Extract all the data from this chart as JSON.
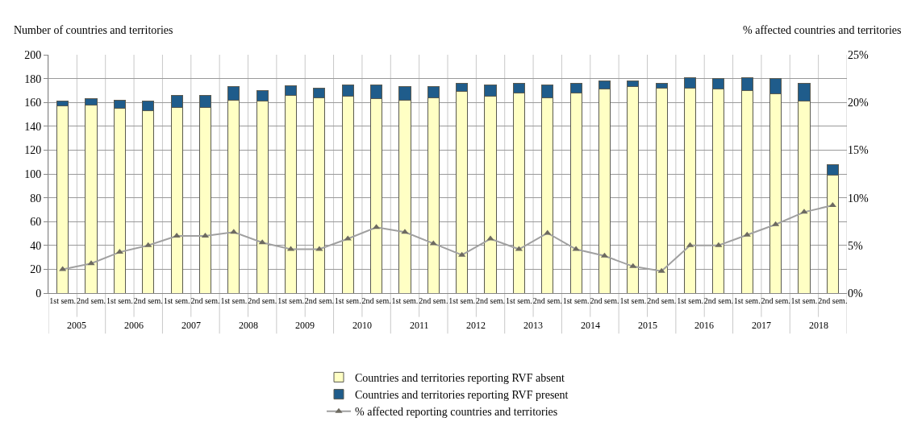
{
  "chart_data": {
    "type": "bar",
    "ylabel": "Number of countries and territories",
    "y2label": "% affected countries and territories",
    "categories": [
      "1st sem.",
      "2nd sem.",
      "1st sem.",
      "2nd sem.",
      "1st sem.",
      "2nd sem.",
      "1st sem.",
      "2nd sem.",
      "1st sem.",
      "2nd sem.",
      "1st sem.",
      "2nd sem.",
      "1st sem.",
      "2nd sem.",
      "1st sem.",
      "2nd sem.",
      "1st sem.",
      "2nd sem.",
      "1st sem.",
      "2nd sem.",
      "1st sem.",
      "2nd sem.",
      "1st sem.",
      "2nd sem.",
      "1st sem.",
      "2nd sem.",
      "1st sem.",
      "2nd sem."
    ],
    "annotations": [
      "2005",
      "2006",
      "2007",
      "2008",
      "2009",
      "2010",
      "2011",
      "2012",
      "2013",
      "2014",
      "2015",
      "2016",
      "2017",
      "2018"
    ],
    "stacked": true,
    "series": [
      {
        "name": "Countries and territories reporting RVF absent",
        "color": "#ffffc4",
        "values": [
          157,
          158,
          155,
          153,
          156,
          156,
          162,
          161,
          166,
          164,
          165,
          163,
          162,
          164,
          169,
          165,
          168,
          164,
          168,
          171,
          173,
          172,
          172,
          171,
          170,
          167,
          161,
          99
        ]
      },
      {
        "name": "Countries and territories reporting RVF present",
        "color": "#1f5c8b",
        "values": [
          4,
          5,
          7,
          8,
          10,
          10,
          11,
          9,
          8,
          8,
          10,
          12,
          11,
          9,
          7,
          10,
          8,
          11,
          8,
          7,
          5,
          4,
          9,
          9,
          11,
          13,
          15,
          9
        ]
      },
      {
        "name": "% affected reporting countries and territories",
        "type": "line",
        "axis": "y2",
        "color": "#a0a0a0",
        "marker": "triangle",
        "values": [
          2.5,
          3.1,
          4.3,
          5.0,
          6.0,
          6.0,
          6.4,
          5.3,
          4.6,
          4.6,
          5.7,
          6.9,
          6.4,
          5.2,
          4.0,
          5.7,
          4.6,
          6.3,
          4.6,
          3.9,
          2.8,
          2.3,
          5.0,
          5.0,
          6.1,
          7.2,
          8.5,
          9.2
        ]
      }
    ],
    "ylim": [
      0,
      200
    ],
    "yticks": [
      0,
      20,
      40,
      60,
      80,
      100,
      120,
      140,
      160,
      180,
      200
    ],
    "y2lim": [
      0,
      25
    ],
    "y2ticks": [
      {
        "value": 0,
        "label": "0%"
      },
      {
        "value": 5,
        "label": "5%"
      },
      {
        "value": 10,
        "label": "10%"
      },
      {
        "value": 15,
        "label": "15%"
      },
      {
        "value": 20,
        "label": "20%"
      },
      {
        "value": 25,
        "label": "25%"
      }
    ],
    "grid": true,
    "legend": "bottom"
  }
}
